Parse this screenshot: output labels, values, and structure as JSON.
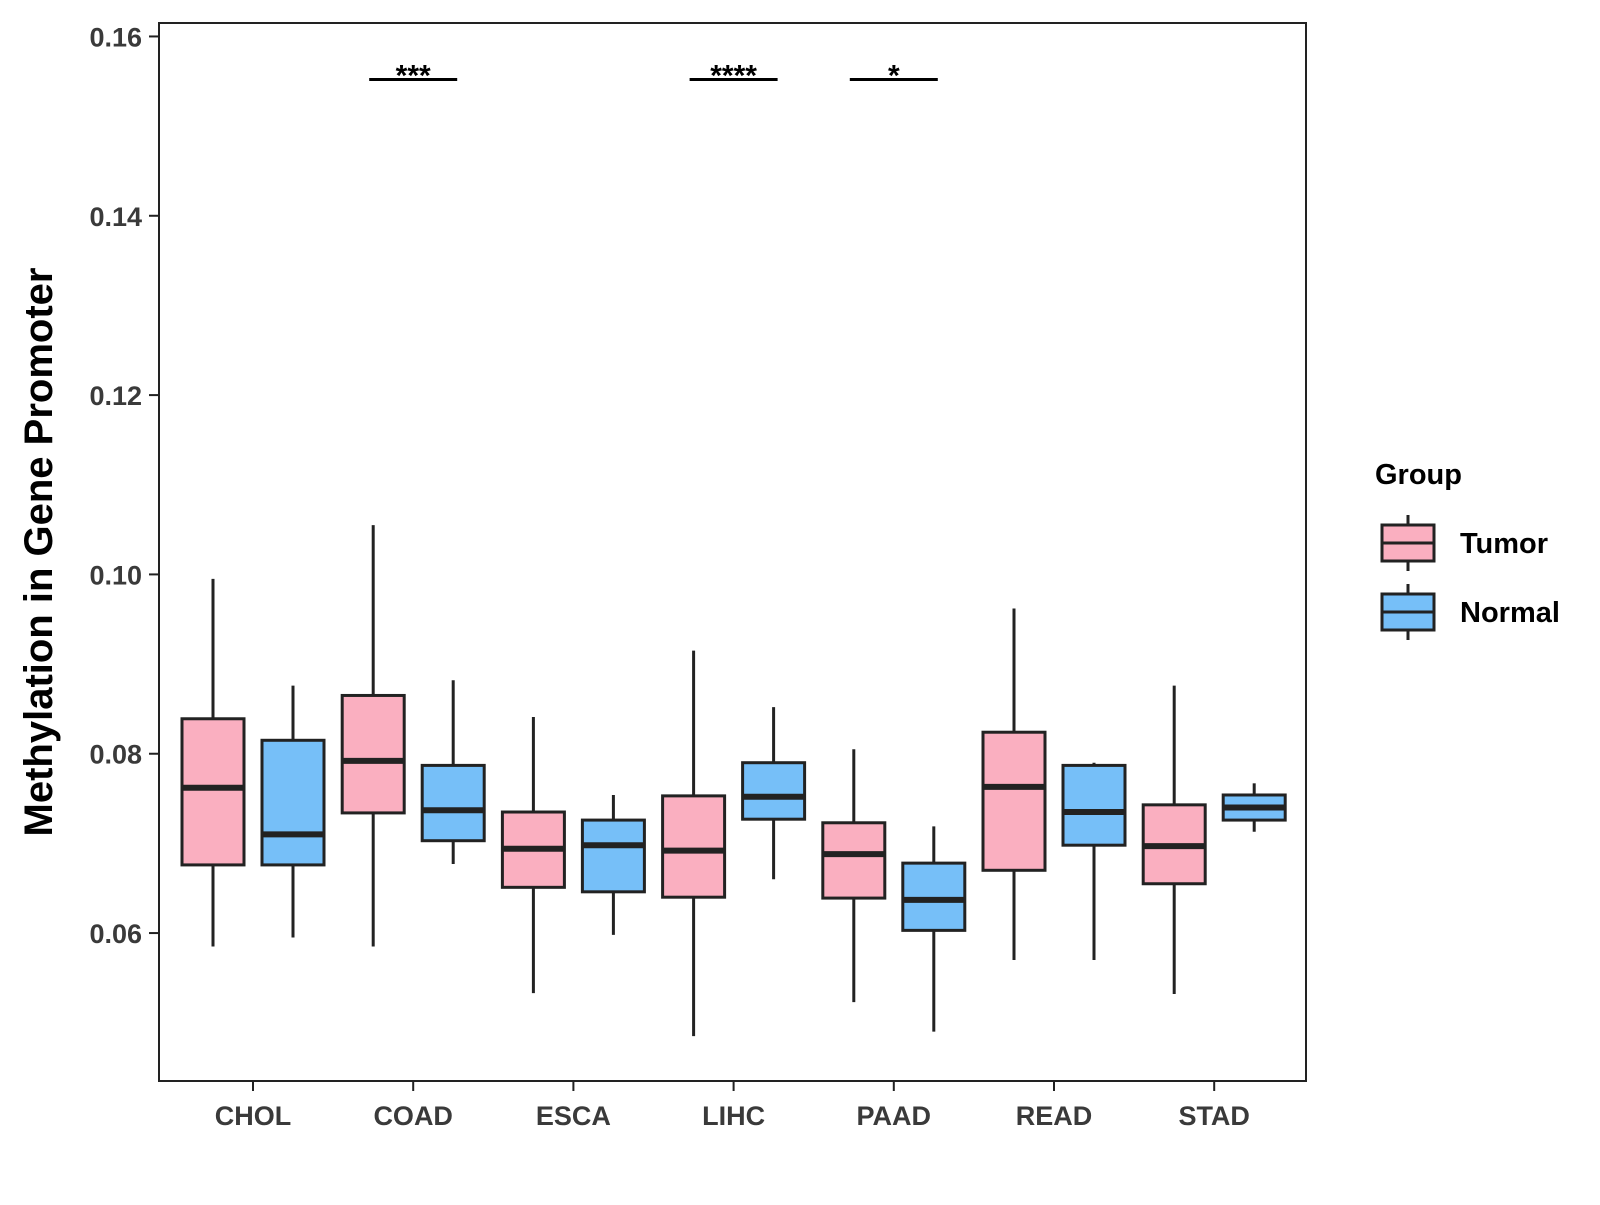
{
  "chart_data": {
    "type": "boxplot",
    "title": "",
    "xlabel": "",
    "ylabel": "Methylation in Gene Promoter",
    "ylim": [
      0.0435,
      0.1615
    ],
    "yticks": [
      0.06,
      0.08,
      0.1,
      0.12,
      0.14,
      0.16
    ],
    "ytick_labels": [
      "0.06",
      "0.08",
      "0.10",
      "0.12",
      "0.14",
      "0.16"
    ],
    "categories": [
      "CHOL",
      "COAD",
      "ESCA",
      "LIHC",
      "PAAD",
      "READ",
      "STAD"
    ],
    "grid": false,
    "legend": {
      "title": "Group",
      "position": "right",
      "entries": [
        {
          "name": "Tumor",
          "color": "#FAAFC0"
        },
        {
          "name": "Normal",
          "color": "#76BFF8"
        }
      ]
    },
    "series": [
      {
        "name": "Tumor",
        "color": "#FAAFC0",
        "boxes": [
          {
            "category": "CHOL",
            "whisker_low": 0.0585,
            "q1": 0.0676,
            "median": 0.0762,
            "q3": 0.0839,
            "whisker_high": 0.0995
          },
          {
            "category": "COAD",
            "whisker_low": 0.0585,
            "q1": 0.0734,
            "median": 0.0792,
            "q3": 0.0865,
            "whisker_high": 0.1055
          },
          {
            "category": "ESCA",
            "whisker_low": 0.0533,
            "q1": 0.0651,
            "median": 0.0694,
            "q3": 0.0735,
            "whisker_high": 0.0841
          },
          {
            "category": "LIHC",
            "whisker_low": 0.0485,
            "q1": 0.064,
            "median": 0.0692,
            "q3": 0.0753,
            "whisker_high": 0.0915
          },
          {
            "category": "PAAD",
            "whisker_low": 0.0523,
            "q1": 0.0639,
            "median": 0.0688,
            "q3": 0.0723,
            "whisker_high": 0.0805
          },
          {
            "category": "READ",
            "whisker_low": 0.057,
            "q1": 0.067,
            "median": 0.0763,
            "q3": 0.0824,
            "whisker_high": 0.0962
          },
          {
            "category": "STAD",
            "whisker_low": 0.0532,
            "q1": 0.0655,
            "median": 0.0697,
            "q3": 0.0743,
            "whisker_high": 0.0876
          }
        ]
      },
      {
        "name": "Normal",
        "color": "#76BFF8",
        "boxes": [
          {
            "category": "CHOL",
            "whisker_low": 0.0595,
            "q1": 0.0676,
            "median": 0.071,
            "q3": 0.0815,
            "whisker_high": 0.0876
          },
          {
            "category": "COAD",
            "whisker_low": 0.0677,
            "q1": 0.0703,
            "median": 0.0737,
            "q3": 0.0787,
            "whisker_high": 0.0882
          },
          {
            "category": "ESCA",
            "whisker_low": 0.0598,
            "q1": 0.0646,
            "median": 0.0698,
            "q3": 0.0726,
            "whisker_high": 0.0754
          },
          {
            "category": "LIHC",
            "whisker_low": 0.066,
            "q1": 0.0727,
            "median": 0.0752,
            "q3": 0.079,
            "whisker_high": 0.0852
          },
          {
            "category": "PAAD",
            "whisker_low": 0.049,
            "q1": 0.0603,
            "median": 0.0637,
            "q3": 0.0678,
            "whisker_high": 0.0719
          },
          {
            "category": "READ",
            "whisker_low": 0.057,
            "q1": 0.0698,
            "median": 0.0735,
            "q3": 0.0787,
            "whisker_high": 0.079
          },
          {
            "category": "STAD",
            "whisker_low": 0.0713,
            "q1": 0.0726,
            "median": 0.074,
            "q3": 0.0754,
            "whisker_high": 0.0767
          }
        ]
      }
    ],
    "significance": [
      {
        "category": "COAD",
        "label": "***",
        "y": 0.1552
      },
      {
        "category": "LIHC",
        "label": "****",
        "y": 0.1552
      },
      {
        "category": "PAAD",
        "label": "*",
        "y": 0.1552
      }
    ]
  }
}
